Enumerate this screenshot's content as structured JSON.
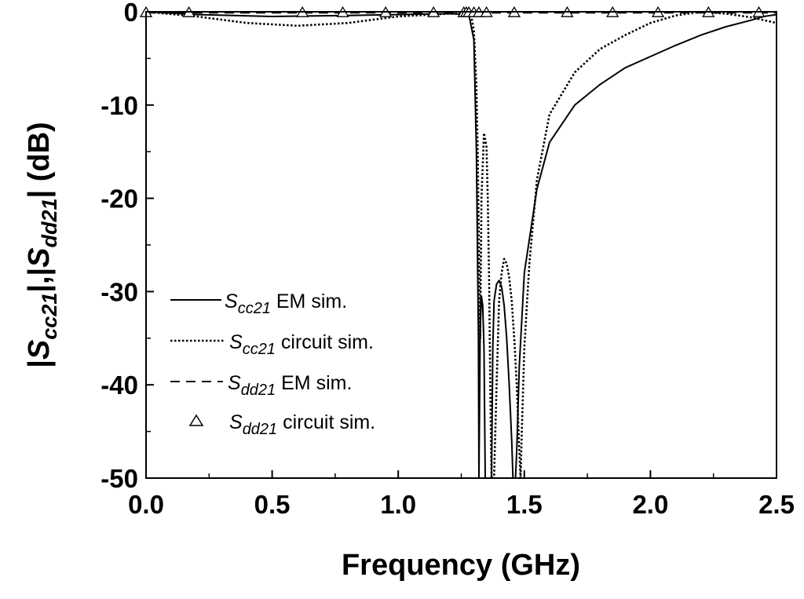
{
  "chart_data": {
    "type": "line",
    "xlabel": "Frequency (GHz)",
    "ylabel_parts": {
      "bar_open": "|",
      "s1": "S",
      "s1_sub": "cc21",
      "mid": "|,|",
      "s2": "S",
      "s2_sub": "dd21",
      "end": "| (dB)"
    },
    "xlim": [
      0,
      2.5
    ],
    "ylim": [
      -50,
      0
    ],
    "x_ticks": [
      0.0,
      0.5,
      1.0,
      1.5,
      2.0,
      2.5
    ],
    "x_tick_labels": [
      "0.0",
      "0.5",
      "1.0",
      "1.5",
      "2.0",
      "2.5"
    ],
    "y_ticks": [
      0,
      -10,
      -20,
      -30,
      -40,
      -50
    ],
    "y_tick_labels": [
      "0",
      "-10",
      "-20",
      "-30",
      "-40",
      "-50"
    ],
    "grid": false,
    "legend_position": "lower-left",
    "legend": [
      {
        "line": "solid",
        "s": "S",
        "sub": "cc21",
        "suffix": " EM sim."
      },
      {
        "line": "dotted",
        "s": "S",
        "sub": "cc21",
        "suffix": " circuit sim."
      },
      {
        "line": "dashed",
        "s": "S",
        "sub": "dd21",
        "suffix": " EM sim."
      },
      {
        "line": "triangle",
        "s": "S",
        "sub": "dd21",
        "suffix": " circuit sim."
      }
    ],
    "series": [
      {
        "id": "scc21-em",
        "style": "solid",
        "x": [
          0.0,
          0.2,
          0.5,
          0.8,
          1.0,
          1.2,
          1.28,
          1.3,
          1.31,
          1.318,
          1.32,
          1.325,
          1.33,
          1.335,
          1.34,
          1.345,
          1.35,
          1.355,
          1.36,
          1.365,
          1.37,
          1.375,
          1.38,
          1.39,
          1.4,
          1.41,
          1.42,
          1.43,
          1.44,
          1.45,
          1.455,
          1.46,
          1.465,
          1.47,
          1.48,
          1.5,
          1.55,
          1.6,
          1.7,
          1.8,
          1.9,
          2.0,
          2.1,
          2.2,
          2.3,
          2.4,
          2.45,
          2.5
        ],
        "y": [
          0,
          -0.3,
          -0.5,
          -0.4,
          -0.3,
          -0.2,
          -0.3,
          -3.0,
          -15.0,
          -35.0,
          -50.0,
          -34.0,
          -30.5,
          -31.5,
          -36.0,
          -50.0,
          -50.0,
          -50.0,
          -50.0,
          -50.0,
          -50.0,
          -36.0,
          -31.0,
          -29.2,
          -28.8,
          -29.5,
          -31.5,
          -35.0,
          -40.0,
          -46.0,
          -50.0,
          -50.0,
          -50.0,
          -47.0,
          -38.0,
          -28.0,
          -19.0,
          -14.0,
          -10.0,
          -7.8,
          -6.0,
          -4.8,
          -3.6,
          -2.5,
          -1.6,
          -0.9,
          -0.5,
          -0.3
        ]
      },
      {
        "id": "scc21-circuit",
        "style": "dotted",
        "x": [
          0.0,
          0.2,
          0.4,
          0.6,
          0.8,
          1.0,
          1.2,
          1.27,
          1.29,
          1.3,
          1.31,
          1.315,
          1.32,
          1.325,
          1.33,
          1.34,
          1.35,
          1.355,
          1.36,
          1.365,
          1.37,
          1.38,
          1.39,
          1.4,
          1.41,
          1.42,
          1.43,
          1.44,
          1.45,
          1.46,
          1.47,
          1.48,
          1.485,
          1.49,
          1.5,
          1.52,
          1.55,
          1.6,
          1.7,
          1.8,
          1.9,
          2.0,
          2.1,
          2.2,
          2.3,
          2.4,
          2.5
        ],
        "y": [
          0,
          -0.5,
          -1.2,
          -1.5,
          -1.2,
          -0.5,
          -0.2,
          -0.2,
          -0.5,
          -2.0,
          -8.0,
          -15.0,
          -25.0,
          -35.0,
          -20.0,
          -13.0,
          -14.5,
          -20.0,
          -28.0,
          -40.0,
          -50.0,
          -50.0,
          -40.0,
          -31.0,
          -28.0,
          -26.5,
          -27.0,
          -28.5,
          -31.0,
          -35.0,
          -40.0,
          -47.0,
          -50.0,
          -45.0,
          -36.0,
          -27.0,
          -18.0,
          -11.0,
          -6.5,
          -4.0,
          -2.5,
          -1.2,
          -0.4,
          0.0,
          -0.2,
          -0.6,
          -1.2
        ]
      },
      {
        "id": "sdd21-em",
        "style": "dashed",
        "x": [
          0.0,
          0.5,
          1.0,
          1.5,
          2.0,
          2.5
        ],
        "y": [
          -0.1,
          -0.1,
          -0.1,
          -0.1,
          -0.1,
          -0.1
        ]
      },
      {
        "id": "sdd21-circuit",
        "style": "triangle",
        "x": [
          0.0,
          0.17,
          0.62,
          0.78,
          0.95,
          1.14,
          1.26,
          1.27,
          1.28,
          1.3,
          1.32,
          1.35,
          1.46,
          1.67,
          1.85,
          2.03,
          2.23,
          2.43
        ],
        "y": [
          -0.1,
          -0.1,
          -0.1,
          -0.1,
          -0.1,
          -0.1,
          -0.1,
          -0.1,
          -0.1,
          -0.1,
          -0.1,
          -0.1,
          -0.1,
          -0.1,
          -0.1,
          -0.1,
          -0.1,
          -0.1
        ]
      }
    ]
  }
}
